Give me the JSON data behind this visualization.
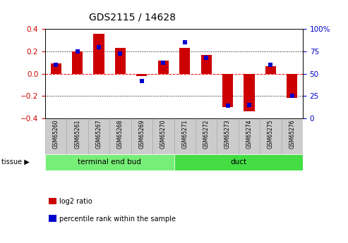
{
  "title": "GDS2115 / 14628",
  "samples": [
    "GSM65260",
    "GSM65261",
    "GSM65267",
    "GSM65268",
    "GSM65269",
    "GSM65270",
    "GSM65271",
    "GSM65272",
    "GSM65273",
    "GSM65274",
    "GSM65275",
    "GSM65276"
  ],
  "log2_ratio": [
    0.09,
    0.2,
    0.36,
    0.23,
    -0.02,
    0.12,
    0.23,
    0.17,
    -0.3,
    -0.34,
    0.07,
    -0.22
  ],
  "percentile": [
    60,
    75,
    80,
    73,
    42,
    62,
    85,
    68,
    14,
    15,
    60,
    25
  ],
  "groups": [
    {
      "label": "terminal end bud",
      "start": 0,
      "end": 6,
      "color": "#77ee77"
    },
    {
      "label": "duct",
      "start": 6,
      "end": 12,
      "color": "#44dd44"
    }
  ],
  "bar_color_red": "#cc0000",
  "bar_color_blue": "#0000cc",
  "ylim_left": [
    -0.4,
    0.4
  ],
  "ylim_right": [
    0,
    100
  ],
  "yticks_left": [
    -0.4,
    -0.2,
    0.0,
    0.2,
    0.4
  ],
  "yticks_right": [
    0,
    25,
    50,
    75,
    100
  ],
  "hlines_dotted": [
    0.2,
    -0.2
  ],
  "hline_dashed_val": 0.0,
  "tissue_label": "tissue",
  "legend_items": [
    {
      "label": "log2 ratio",
      "color": "#cc0000"
    },
    {
      "label": "percentile rank within the sample",
      "color": "#0000cc"
    }
  ],
  "bar_width": 0.5,
  "percentile_square_size": 25,
  "background_color": "#ffffff",
  "plot_bg_color": "#ffffff",
  "tick_label_color_left": "#cc0000",
  "tick_label_color_right": "#0000cc",
  "label_bg_color": "#cccccc",
  "label_border_color": "#aaaaaa"
}
